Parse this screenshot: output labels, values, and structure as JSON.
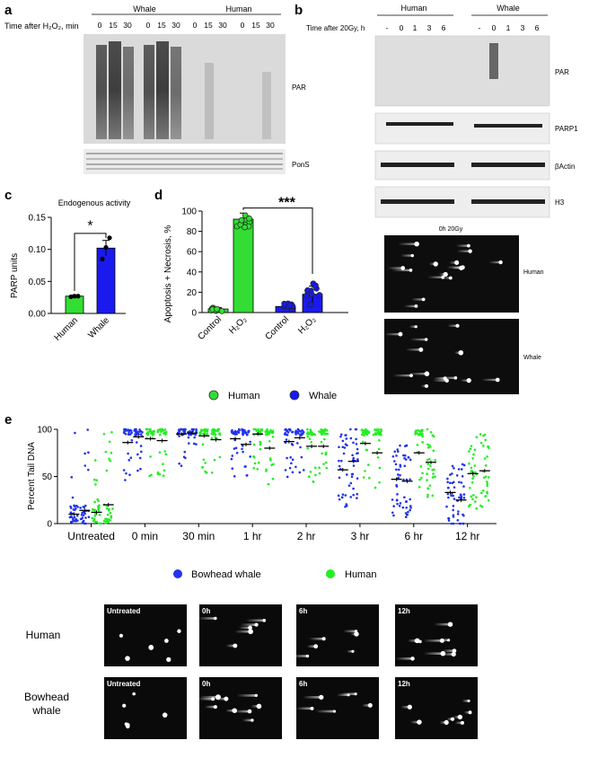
{
  "panels": {
    "a": {
      "letter": "a",
      "time_label": "Time after H₂O₂, min",
      "groups": [
        "Whale",
        "Human"
      ],
      "lane_labels": [
        "0",
        "15",
        "30",
        "0",
        "15",
        "30",
        "0",
        "15",
        "30",
        "0",
        "15",
        "30"
      ],
      "blot_labels": [
        "PAR",
        "PonS"
      ]
    },
    "b": {
      "letter": "b",
      "time_label": "Time after 20Gy, h",
      "groups": [
        "Human",
        "Whale"
      ],
      "lane_labels": [
        "-",
        "0",
        "1",
        "3",
        "6",
        "-",
        "0",
        "1",
        "3",
        "6"
      ],
      "blot_labels": [
        "PAR",
        "PARP1",
        "βActin",
        "H3"
      ],
      "comet_title": "0h 20Gy",
      "comet_labels": [
        "Human",
        "Whale"
      ]
    },
    "c": {
      "letter": "c",
      "chart_data": {
        "type": "bar",
        "title": "Endogenous activity",
        "ylabel": "PARP units",
        "categories": [
          "Human",
          "Whale"
        ],
        "values": [
          0.027,
          0.102
        ],
        "errors": [
          0.0015,
          0.012
        ],
        "points": [
          [
            0.026,
            0.027,
            0.027
          ],
          [
            0.085,
            0.103,
            0.118
          ]
        ],
        "colors": [
          "#33dd33",
          "#1a1aee"
        ],
        "ylim": [
          0,
          0.15
        ],
        "yticks": [
          "0.00",
          "0.05",
          "0.10",
          "0.15"
        ],
        "significance": "*"
      }
    },
    "d": {
      "letter": "d",
      "chart_data": {
        "type": "bar",
        "ylabel": "Apoptosis + Necrosis, %",
        "categories": [
          "Control",
          "H₂O₂",
          "Control",
          "H₂O₂"
        ],
        "values": [
          3.5,
          92,
          6,
          18
        ],
        "errors": [
          1.5,
          6,
          2.5,
          8
        ],
        "colors": [
          "#33dd33",
          "#33dd33",
          "#1a1aee",
          "#1a1aee"
        ],
        "ylim": [
          0,
          100
        ],
        "yticks": [
          "0",
          "20",
          "40",
          "60",
          "80",
          "100"
        ],
        "significance": "***",
        "legend": [
          "Human",
          "Whale"
        ]
      }
    },
    "e": {
      "letter": "e",
      "chart_data": {
        "type": "scatter",
        "ylabel": "Percent Tail  DNA",
        "categories": [
          "Untreated",
          "0 min",
          "30 min",
          "1 hr",
          "2 hr",
          "3 hr",
          "6 hr",
          "12 hr"
        ],
        "series": [
          {
            "name": "Bowhead whale",
            "color": "#2233ee"
          },
          {
            "name": "Human",
            "color": "#22ee22"
          }
        ],
        "means": [
          [
            10,
            14,
            12,
            20
          ],
          [
            86,
            92,
            90,
            88
          ],
          [
            95,
            96,
            93,
            89
          ],
          [
            90,
            84,
            95,
            80
          ],
          [
            87,
            91,
            82,
            82
          ],
          [
            57,
            66,
            85,
            75
          ],
          [
            47,
            45,
            75,
            65
          ],
          [
            33,
            25,
            53,
            56
          ]
        ],
        "ylim": [
          0,
          100
        ],
        "yticks": [
          "0",
          "50",
          "100"
        ],
        "legend": [
          "Bowhead whale",
          "Human"
        ]
      },
      "row_labels": [
        "Human",
        "Bowhead\nwhale"
      ],
      "image_labels": [
        [
          "Untreated",
          "0h",
          "6h",
          "12h"
        ],
        [
          "Untreated",
          "0h",
          "6h",
          "12h"
        ]
      ]
    }
  }
}
